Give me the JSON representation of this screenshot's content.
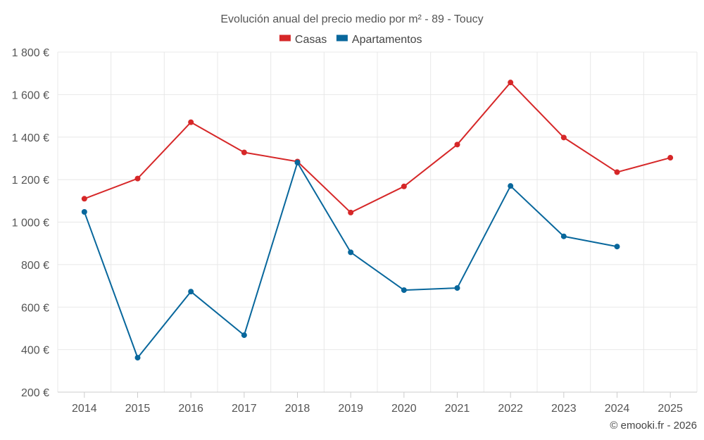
{
  "chart_data": {
    "type": "line",
    "title": "Evolución anual del precio medio por m² - 89 - Toucy",
    "categories": [
      "2014",
      "2015",
      "2016",
      "2017",
      "2018",
      "2019",
      "2020",
      "2021",
      "2022",
      "2023",
      "2024",
      "2025"
    ],
    "series": [
      {
        "name": "Casas",
        "color": "#d62728",
        "values": [
          1110,
          1205,
          1470,
          1328,
          1285,
          1045,
          1168,
          1365,
          1657,
          1398,
          1235,
          1303
        ]
      },
      {
        "name": "Apartamentos",
        "color": "#08679c",
        "values": [
          1048,
          362,
          673,
          468,
          1280,
          858,
          680,
          690,
          1170,
          933,
          885,
          null
        ]
      }
    ],
    "y_ticks": [
      200,
      400,
      600,
      800,
      1000,
      1200,
      1400,
      1600,
      1800
    ],
    "y_tick_labels": [
      "200 €",
      "400 €",
      "600 €",
      "800 €",
      "1 000 €",
      "1 200 €",
      "1 400 €",
      "1 600 €",
      "1 800 €"
    ],
    "ylim": [
      200,
      1800
    ],
    "xlabel": "",
    "ylabel": "",
    "grid": true,
    "legend_position": "top-center"
  },
  "credit": "© emooki.fr - 2026"
}
